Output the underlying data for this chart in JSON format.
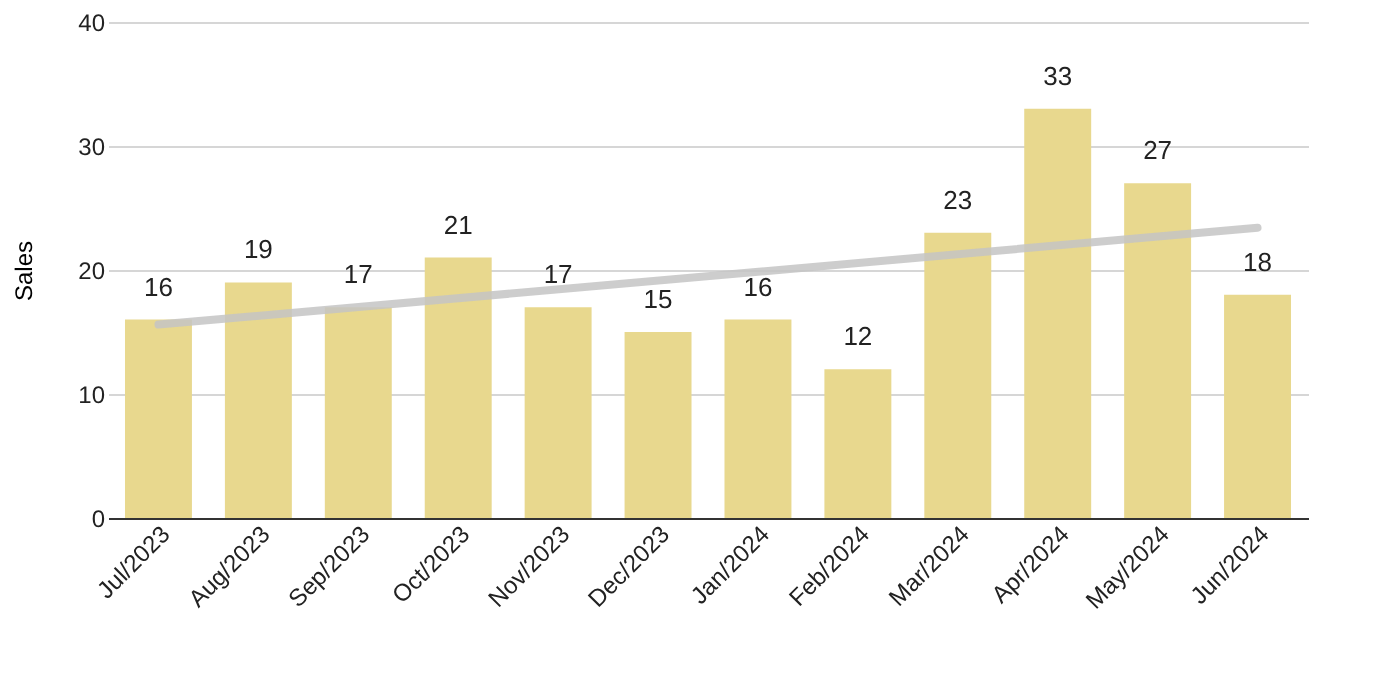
{
  "chart_data": {
    "type": "bar",
    "ylabel": "Sales",
    "categories": [
      "Jul/2023",
      "Aug/2023",
      "Sep/2023",
      "Oct/2023",
      "Nov/2023",
      "Dec/2023",
      "Jan/2024",
      "Feb/2024",
      "Mar/2024",
      "Apr/2024",
      "May/2024",
      "Jun/2024"
    ],
    "series": [
      {
        "color": "#e8d88e",
        "values": [
          16,
          19,
          17,
          21,
          17,
          15,
          16,
          12,
          23,
          33,
          27,
          18
        ],
        "value_labels": [
          "16",
          "19",
          "17",
          "21",
          "17",
          "15",
          "16",
          "12",
          "23",
          "33",
          "27",
          "18"
        ]
      },
      {
        "type": "line",
        "color": "#c4c4c4",
        "x": [
          "Jul/2023",
          "Jun/2024"
        ],
        "values": [
          15.6,
          23.4
        ]
      }
    ],
    "ylim": [
      0,
      40
    ],
    "yticks": [
      0,
      10,
      20,
      30,
      40
    ],
    "grid": "y"
  }
}
